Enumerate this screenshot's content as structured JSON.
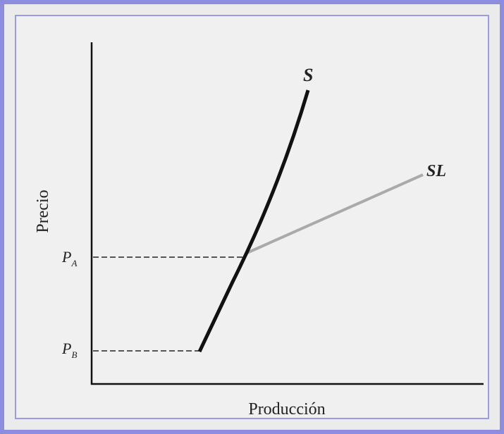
{
  "diagram": {
    "curves": [
      {
        "label": "S"
      },
      {
        "label": "SL"
      }
    ],
    "axes": {
      "y_label": "Precio",
      "x_label": "Producción"
    },
    "price_levels": [
      {
        "letter": "P",
        "subscript": "A"
      },
      {
        "letter": "P",
        "subscript": "B"
      }
    ]
  }
}
